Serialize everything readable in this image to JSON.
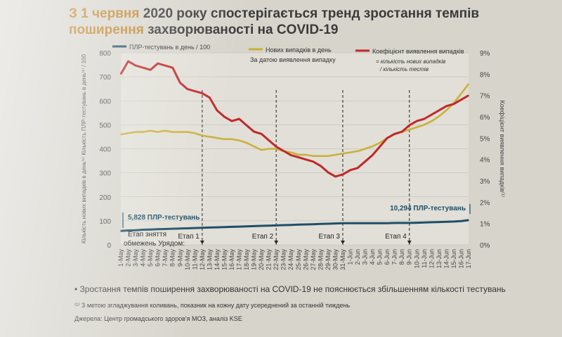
{
  "title": {
    "accent": "З 1 червня",
    "rest": "2020 року спостерігається тренд зростання темпів",
    "line2_accent": "поширення",
    "line2_rest": "захворюваності на COVID-19"
  },
  "colors": {
    "tests": "#1f4e66",
    "cases": "#c9b037",
    "rate": "#c0282a",
    "accent": "#c0842a"
  },
  "chart_data": {
    "type": "line",
    "x": [
      "1-May",
      "2-May",
      "3-May",
      "4-May",
      "5-May",
      "6-May",
      "7-May",
      "8-May",
      "9-May",
      "10-May",
      "11-May",
      "12-May",
      "13-May",
      "14-May",
      "15-May",
      "16-May",
      "17-May",
      "18-May",
      "19-May",
      "20-May",
      "21-May",
      "22-May",
      "23-May",
      "24-May",
      "25-May",
      "26-May",
      "27-May",
      "28-May",
      "29-May",
      "30-May",
      "31-May",
      "1-Jun",
      "2-Jun",
      "3-Jun",
      "4-Jun",
      "5-Jun",
      "6-Jun",
      "7-Jun",
      "8-Jun",
      "9-Jun",
      "10-Jun",
      "11-Jun",
      "12-Jun",
      "13-Jun",
      "14-Jun",
      "15-Jun",
      "16-Jun",
      "17-Jun"
    ],
    "ylim_left": [
      0,
      800
    ],
    "yticks_left": [
      "0",
      "100",
      "200",
      "300",
      "400",
      "500",
      "600",
      "700",
      "800"
    ],
    "ylim_right": [
      0,
      9
    ],
    "yticks_right": [
      "0%",
      "1%",
      "2%",
      "3%",
      "4%",
      "5%",
      "6%",
      "7%",
      "8%",
      "9%"
    ],
    "ylabel_left": "Кількість нових випадків в день⁽¹⁾ Кількість ПЛР-тестувань в день⁽¹⁾ / 100",
    "ylabel_right": "Коефіцієнт виявлення випадків⁽¹⁾",
    "series": [
      {
        "name": "ПЛР-тестувань в день / 100",
        "axis": "left",
        "values": [
          58,
          60,
          61,
          63,
          64,
          65,
          66,
          67,
          68,
          69,
          70,
          71,
          72,
          73,
          74,
          75,
          76,
          77,
          78,
          79,
          80,
          81,
          82,
          83,
          84,
          85,
          86,
          87,
          88,
          89,
          90,
          90,
          90,
          90,
          90,
          90,
          90,
          91,
          91,
          91,
          92,
          93,
          94,
          95,
          96,
          97,
          99,
          103
        ]
      },
      {
        "name": "Нових випадків в день",
        "axis": "left",
        "values": [
          460,
          465,
          470,
          470,
          475,
          470,
          475,
          470,
          470,
          470,
          465,
          455,
          450,
          445,
          440,
          440,
          435,
          425,
          410,
          395,
          400,
          400,
          390,
          385,
          375,
          375,
          370,
          370,
          370,
          375,
          380,
          385,
          390,
          400,
          410,
          425,
          445,
          460,
          470,
          480,
          490,
          500,
          515,
          535,
          560,
          590,
          630,
          670
        ]
      },
      {
        "name": "Коефіцієнт виявлення випадків",
        "axis": "right",
        "values": [
          8.0,
          8.6,
          8.4,
          8.3,
          8.2,
          8.5,
          8.4,
          8.3,
          7.6,
          7.3,
          7.2,
          7.1,
          6.9,
          6.3,
          6.0,
          5.8,
          5.9,
          5.6,
          5.3,
          5.2,
          4.9,
          4.6,
          4.4,
          4.2,
          4.1,
          4.0,
          3.9,
          3.7,
          3.4,
          3.2,
          3.3,
          3.5,
          3.6,
          3.9,
          4.2,
          4.6,
          5.0,
          5.2,
          5.3,
          5.6,
          5.8,
          5.9,
          6.1,
          6.3,
          6.5,
          6.6,
          6.8,
          7.0
        ]
      }
    ],
    "legend": {
      "tests": "ПЛР-тестувань в день / 100",
      "cases": "Нових випадків в день",
      "cases_sub": "За датою виявлення випадку",
      "rate": "Коефіцієнт виявлення випадків",
      "rate_sub1": "= кількість нових випадків",
      "rate_sub2": "/ кількість тестів"
    },
    "annotations": {
      "tests_start": "5,828 ПЛР-тестувань",
      "tests_end": "10,294 ПЛР-тестувань",
      "stage0_line1": "Етап зняття",
      "stage0_line2": "обмежень Урядом:",
      "stages": [
        {
          "label": "Етап 1",
          "day": 11
        },
        {
          "label": "Етап 2",
          "day": 21
        },
        {
          "label": "Етап 3",
          "day": 30
        },
        {
          "label": "Етап 4",
          "day": 39
        }
      ]
    }
  },
  "notes": {
    "bullet": "Зростання темпів поширення захворюваності на COVID-19 не пояснюється збільшенням кількості тестувань",
    "footnote": "⁽¹⁾ З метою згладжування коливань, показник на кожну дату усереднений за останній тиждень",
    "source": "Джерела: Центр громадського здоров'я МОЗ, аналіз KSE"
  }
}
